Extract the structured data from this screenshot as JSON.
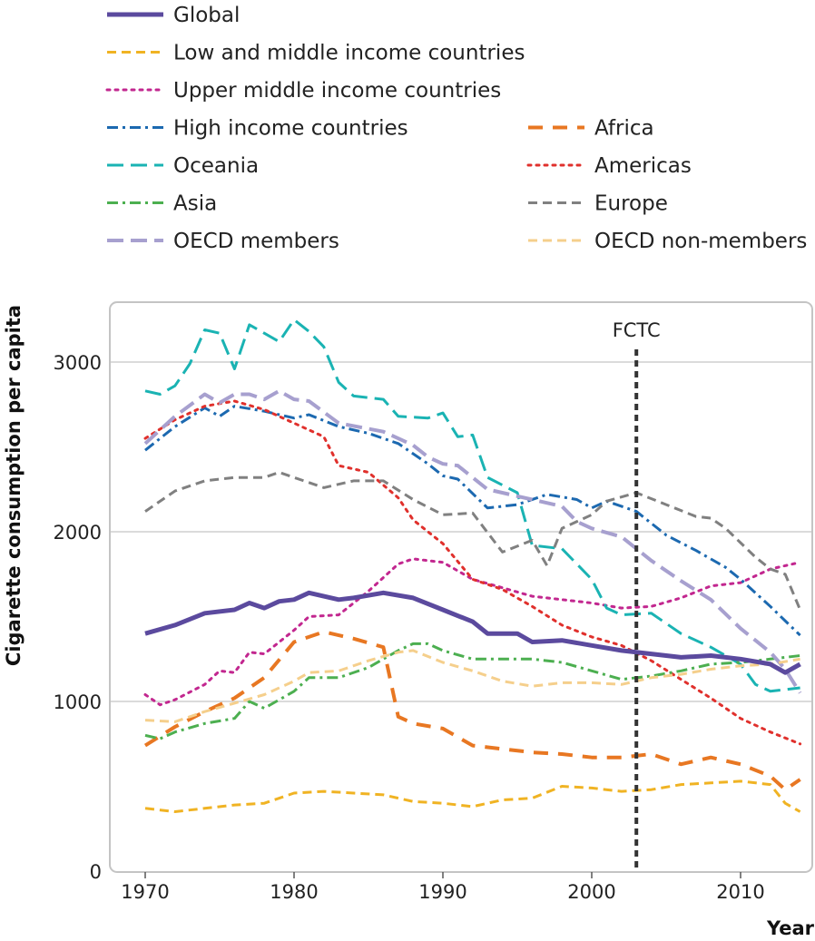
{
  "chart_data": {
    "type": "line",
    "xlabel": "Year",
    "ylabel": "Cigarette consumption per capita",
    "xlim": [
      1967.5,
      2014.5
    ],
    "ylim": [
      0,
      3300
    ],
    "xticks": [
      "1970",
      "1980",
      "1990",
      "2000",
      "2010"
    ],
    "yticks": [
      "0",
      "1000",
      "2000",
      "3000"
    ],
    "grid": "horizontal",
    "legend_position": "top",
    "annotation": {
      "label": "FCTC",
      "x": 2003
    },
    "series": [
      {
        "name": "Global",
        "color": "#5b4a9e",
        "style": "solid",
        "width": 5,
        "x": [
          1970,
          1972,
          1974,
          1976,
          1977,
          1978,
          1979,
          1980,
          1981,
          1982,
          1983,
          1984,
          1986,
          1988,
          1990,
          1992,
          1993,
          1995,
          1996,
          1998,
          2000,
          2002,
          2004,
          2006,
          2008,
          2010,
          2012,
          2013,
          2014
        ],
        "y": [
          1400,
          1450,
          1520,
          1540,
          1580,
          1550,
          1590,
          1600,
          1640,
          1620,
          1600,
          1610,
          1640,
          1610,
          1540,
          1470,
          1400,
          1400,
          1350,
          1360,
          1330,
          1300,
          1280,
          1260,
          1270,
          1250,
          1220,
          1170,
          1220
        ]
      },
      {
        "name": "Low and middle income countries",
        "color": "#f0b323",
        "style": "dash",
        "width": 3,
        "x": [
          1970,
          1972,
          1974,
          1976,
          1978,
          1980,
          1982,
          1984,
          1986,
          1988,
          1990,
          1992,
          1994,
          1996,
          1998,
          2000,
          2002,
          2004,
          2006,
          2008,
          2010,
          2012,
          2013,
          2014
        ],
        "y": [
          370,
          350,
          370,
          390,
          400,
          460,
          470,
          460,
          450,
          410,
          400,
          380,
          420,
          430,
          500,
          490,
          470,
          480,
          510,
          520,
          530,
          510,
          400,
          350
        ]
      },
      {
        "name": "Upper middle income countries",
        "color": "#c2278f",
        "style": "dot",
        "width": 3,
        "x": [
          1970,
          1971,
          1972,
          1974,
          1975,
          1976,
          1977,
          1978,
          1980,
          1981,
          1983,
          1985,
          1987,
          1988,
          1990,
          1992,
          1994,
          1996,
          1998,
          2000,
          2002,
          2004,
          2006,
          2008,
          2010,
          2012,
          2014
        ],
        "y": [
          1040,
          980,
          1010,
          1100,
          1180,
          1170,
          1290,
          1280,
          1420,
          1500,
          1510,
          1650,
          1810,
          1840,
          1820,
          1720,
          1670,
          1620,
          1600,
          1580,
          1550,
          1560,
          1610,
          1680,
          1700,
          1780,
          1820
        ]
      },
      {
        "name": "High income countries",
        "color": "#1c69b0",
        "style": "dashdot",
        "width": 3,
        "x": [
          1970,
          1972,
          1974,
          1975,
          1976,
          1978,
          1980,
          1981,
          1983,
          1985,
          1987,
          1989,
          1990,
          1991,
          1993,
          1995,
          1997,
          1999,
          2000,
          2001,
          2003,
          2005,
          2007,
          2009,
          2010,
          2012,
          2014
        ],
        "y": [
          2480,
          2620,
          2730,
          2680,
          2740,
          2710,
          2670,
          2690,
          2620,
          2580,
          2520,
          2400,
          2330,
          2310,
          2140,
          2160,
          2220,
          2190,
          2140,
          2180,
          2120,
          1980,
          1890,
          1790,
          1720,
          1560,
          1390
        ]
      },
      {
        "name": "Oceania",
        "color": "#1ab3b3",
        "style": "longdash",
        "width": 3,
        "x": [
          1970,
          1971,
          1972,
          1973,
          1974,
          1975,
          1976,
          1977,
          1978,
          1979,
          1980,
          1981,
          1982,
          1983,
          1984,
          1986,
          1987,
          1989,
          1990,
          1991,
          1992,
          1993,
          1995,
          1996,
          1998,
          2000,
          2001,
          2002,
          2004,
          2006,
          2008,
          2010,
          2011,
          2012,
          2014
        ],
        "y": [
          2830,
          2810,
          2860,
          2990,
          3190,
          3170,
          2960,
          3220,
          3170,
          3120,
          3250,
          3180,
          3090,
          2880,
          2800,
          2780,
          2680,
          2670,
          2700,
          2560,
          2570,
          2320,
          2230,
          1920,
          1900,
          1720,
          1550,
          1510,
          1520,
          1400,
          1320,
          1220,
          1100,
          1060,
          1080
        ]
      },
      {
        "name": "Africa",
        "color": "#e87722",
        "style": "widedash",
        "width": 4,
        "x": [
          1970,
          1972,
          1974,
          1976,
          1978,
          1980,
          1982,
          1984,
          1986,
          1987,
          1988,
          1990,
          1992,
          1994,
          1996,
          1998,
          2000,
          2002,
          2004,
          2006,
          2008,
          2010,
          2012,
          2013,
          2014
        ],
        "y": [
          740,
          850,
          940,
          1020,
          1140,
          1350,
          1410,
          1370,
          1320,
          910,
          870,
          840,
          740,
          720,
          700,
          690,
          670,
          670,
          690,
          630,
          670,
          630,
          560,
          480,
          540
        ]
      },
      {
        "name": "Americas",
        "color": "#e0302c",
        "style": "dot",
        "width": 3,
        "x": [
          1970,
          1972,
          1974,
          1976,
          1978,
          1980,
          1982,
          1983,
          1985,
          1987,
          1988,
          1990,
          1992,
          1994,
          1996,
          1998,
          2000,
          2002,
          2004,
          2006,
          2008,
          2010,
          2012,
          2014
        ],
        "y": [
          2550,
          2660,
          2740,
          2770,
          2720,
          2640,
          2560,
          2390,
          2350,
          2200,
          2070,
          1930,
          1720,
          1660,
          1560,
          1450,
          1380,
          1330,
          1240,
          1130,
          1020,
          900,
          820,
          750
        ]
      },
      {
        "name": "Asia",
        "color": "#4caf50",
        "style": "dashdot",
        "width": 3,
        "x": [
          1970,
          1971,
          1972,
          1974,
          1976,
          1977,
          1978,
          1980,
          1981,
          1983,
          1985,
          1987,
          1988,
          1989,
          1990,
          1992,
          1994,
          1996,
          1998,
          2000,
          2002,
          2004,
          2006,
          2008,
          2010,
          2012,
          2014
        ],
        "y": [
          800,
          780,
          820,
          870,
          900,
          1000,
          960,
          1060,
          1140,
          1140,
          1200,
          1300,
          1340,
          1340,
          1300,
          1250,
          1250,
          1250,
          1230,
          1180,
          1130,
          1150,
          1180,
          1220,
          1230,
          1250,
          1270
        ]
      },
      {
        "name": "Europe",
        "color": "#808080",
        "style": "dash",
        "width": 3,
        "x": [
          1970,
          1972,
          1974,
          1976,
          1978,
          1979,
          1980,
          1982,
          1984,
          1986,
          1988,
          1990,
          1992,
          1994,
          1996,
          1997,
          1998,
          1999,
          2000,
          2001,
          2003,
          2005,
          2007,
          2008,
          2009,
          2011,
          2012,
          2013,
          2014
        ],
        "y": [
          2120,
          2240,
          2300,
          2320,
          2320,
          2350,
          2320,
          2260,
          2300,
          2300,
          2190,
          2100,
          2110,
          1880,
          1950,
          1800,
          2020,
          2060,
          2100,
          2180,
          2230,
          2160,
          2090,
          2080,
          2020,
          1850,
          1780,
          1750,
          1540
        ]
      },
      {
        "name": "OECD members",
        "color": "#a7a0cf",
        "style": "longdash",
        "width": 4,
        "x": [
          1970,
          1972,
          1974,
          1975,
          1976,
          1977,
          1978,
          1979,
          1980,
          1981,
          1983,
          1986,
          1988,
          1989,
          1990,
          1991,
          1993,
          1996,
          1998,
          1999,
          2000,
          2002,
          2004,
          2006,
          2008,
          2010,
          2011,
          2012,
          2013,
          2014
        ],
        "y": [
          2520,
          2680,
          2810,
          2760,
          2810,
          2810,
          2780,
          2830,
          2780,
          2770,
          2640,
          2590,
          2510,
          2440,
          2400,
          2390,
          2250,
          2190,
          2150,
          2060,
          2020,
          1970,
          1830,
          1710,
          1600,
          1430,
          1360,
          1290,
          1190,
          1050
        ]
      },
      {
        "name": "OECD non-members",
        "color": "#f5cf8c",
        "style": "dash",
        "width": 3,
        "x": [
          1970,
          1972,
          1974,
          1976,
          1978,
          1980,
          1981,
          1983,
          1985,
          1987,
          1988,
          1990,
          1992,
          1994,
          1996,
          1998,
          2000,
          2002,
          2004,
          2006,
          2008,
          2010,
          2012,
          2014
        ],
        "y": [
          890,
          880,
          940,
          990,
          1040,
          1120,
          1170,
          1180,
          1240,
          1290,
          1300,
          1230,
          1180,
          1120,
          1090,
          1110,
          1110,
          1100,
          1140,
          1160,
          1190,
          1210,
          1220,
          1250
        ]
      }
    ]
  }
}
